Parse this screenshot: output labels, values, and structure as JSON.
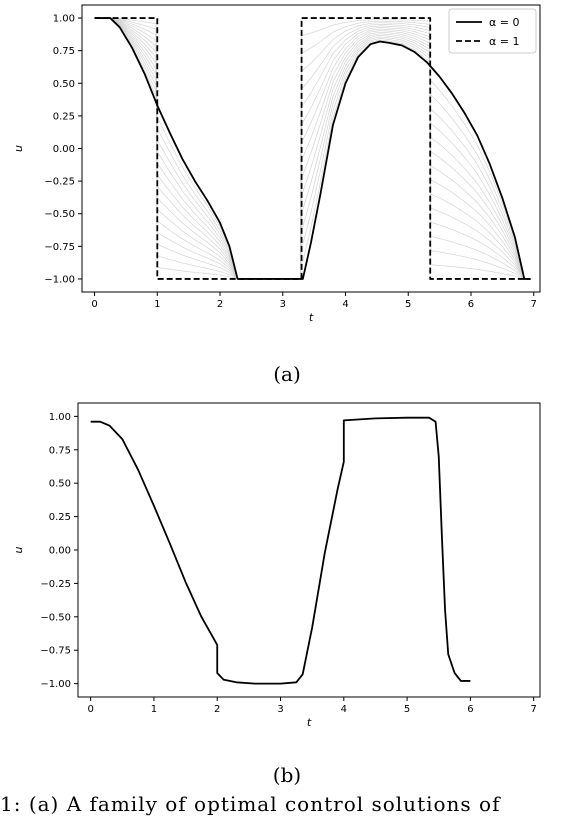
{
  "labels": {
    "panel_a": "(a)",
    "panel_b": "(b)",
    "caption_fragment": "1: (a) A family of optimal control solutions of"
  },
  "colors": {
    "curve": "#000000",
    "family": "#cfcfcf",
    "axis": "#000000"
  },
  "chart_data": [
    {
      "type": "line",
      "xlabel": "t",
      "ylabel": "u",
      "xlim": [
        -0.2,
        7.1
      ],
      "ylim": [
        -1.1,
        1.1
      ],
      "xticks": [
        0,
        1,
        2,
        3,
        4,
        5,
        6,
        7
      ],
      "yticks": [
        -1.0,
        -0.75,
        -0.5,
        -0.25,
        0.0,
        0.25,
        0.5,
        0.75,
        1.0
      ],
      "legend_position": "top-right",
      "legend": [
        "α = 0",
        "α = 1"
      ],
      "family_curves": 14,
      "series": [
        {
          "name": "α = 0",
          "style": "solid",
          "x": [
            0,
            0.25,
            0.4,
            0.6,
            0.8,
            1.0,
            1.2,
            1.4,
            1.6,
            1.8,
            2.0,
            2.15,
            2.28,
            3.32,
            3.45,
            3.6,
            3.8,
            4.0,
            4.2,
            4.4,
            4.55,
            4.7,
            4.9,
            5.1,
            5.3,
            5.5,
            5.7,
            5.9,
            6.1,
            6.3,
            6.5,
            6.7,
            6.85,
            6.95
          ],
          "y": [
            1.0,
            1.0,
            0.93,
            0.77,
            0.57,
            0.33,
            0.12,
            -0.08,
            -0.25,
            -0.4,
            -0.57,
            -0.75,
            -1.0,
            -1.0,
            -0.72,
            -0.35,
            0.18,
            0.5,
            0.7,
            0.8,
            0.82,
            0.81,
            0.79,
            0.74,
            0.66,
            0.55,
            0.42,
            0.27,
            0.1,
            -0.12,
            -0.38,
            -0.68,
            -1.0,
            -1.0
          ]
        },
        {
          "name": "α = 1",
          "style": "dashed",
          "x": [
            0,
            1.0,
            1.0,
            3.3,
            3.3,
            5.35,
            5.35,
            6.95
          ],
          "y": [
            1.0,
            1.0,
            -1.0,
            -1.0,
            1.0,
            1.0,
            -1.0,
            -1.0
          ]
        }
      ]
    },
    {
      "type": "line",
      "xlabel": "t",
      "ylabel": "u",
      "xlim": [
        -0.2,
        7.1
      ],
      "ylim": [
        -1.1,
        1.1
      ],
      "xticks": [
        0,
        1,
        2,
        3,
        4,
        5,
        6,
        7
      ],
      "yticks": [
        -1.0,
        -0.75,
        -0.5,
        -0.25,
        0.0,
        0.25,
        0.5,
        0.75,
        1.0
      ],
      "series": [
        {
          "style": "solid",
          "x": [
            0,
            0.15,
            0.3,
            0.5,
            0.75,
            1.0,
            1.25,
            1.5,
            1.75,
            2.0,
            2.0,
            2.1,
            2.3,
            2.6,
            3.0,
            3.25,
            3.35,
            3.5,
            3.7,
            3.9,
            4.0,
            4.0,
            4.5,
            5.0,
            5.35,
            5.45,
            5.5,
            5.55,
            5.6,
            5.65,
            5.75,
            5.85,
            6.0
          ],
          "y": [
            0.96,
            0.96,
            0.93,
            0.83,
            0.6,
            0.33,
            0.05,
            -0.24,
            -0.5,
            -0.71,
            -0.92,
            -0.97,
            -0.99,
            -1.0,
            -1.0,
            -0.99,
            -0.93,
            -0.58,
            -0.02,
            0.45,
            0.66,
            0.97,
            0.985,
            0.99,
            0.99,
            0.96,
            0.7,
            0.1,
            -0.45,
            -0.78,
            -0.92,
            -0.98,
            -0.98
          ]
        }
      ]
    }
  ]
}
